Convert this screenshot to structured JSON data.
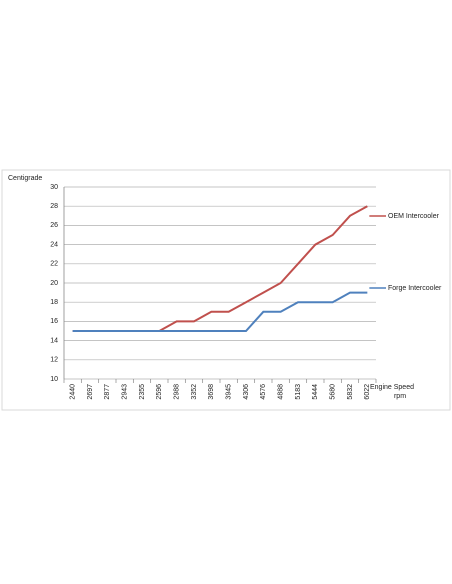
{
  "chart_data": {
    "type": "line",
    "y_label": "Centigrade",
    "x_label": "Engine Speed",
    "x_unit": "rpm",
    "categories": [
      "2440",
      "2697",
      "2877",
      "2943",
      "2355",
      "2596",
      "2988",
      "3352",
      "3698",
      "3945",
      "4306",
      "4576",
      "4888",
      "5183",
      "5444",
      "5680",
      "5832",
      "6022"
    ],
    "series": [
      {
        "name": "OEM Intercooler",
        "color": "#c0504d",
        "values": [
          15,
          15,
          15,
          15,
          15,
          15,
          16,
          16,
          17,
          17,
          18,
          19,
          20,
          22,
          24,
          25,
          27,
          28
        ]
      },
      {
        "name": "Forge Intercooler",
        "color": "#4f81bd",
        "values": [
          15,
          15,
          15,
          15,
          15,
          15,
          15,
          15,
          15,
          15,
          15,
          17,
          17,
          18,
          18,
          18,
          19,
          19
        ]
      }
    ],
    "ylim": [
      10,
      30
    ],
    "yticks": [
      10,
      12,
      14,
      16,
      18,
      20,
      22,
      24,
      26,
      28,
      30
    ],
    "grid": true
  }
}
